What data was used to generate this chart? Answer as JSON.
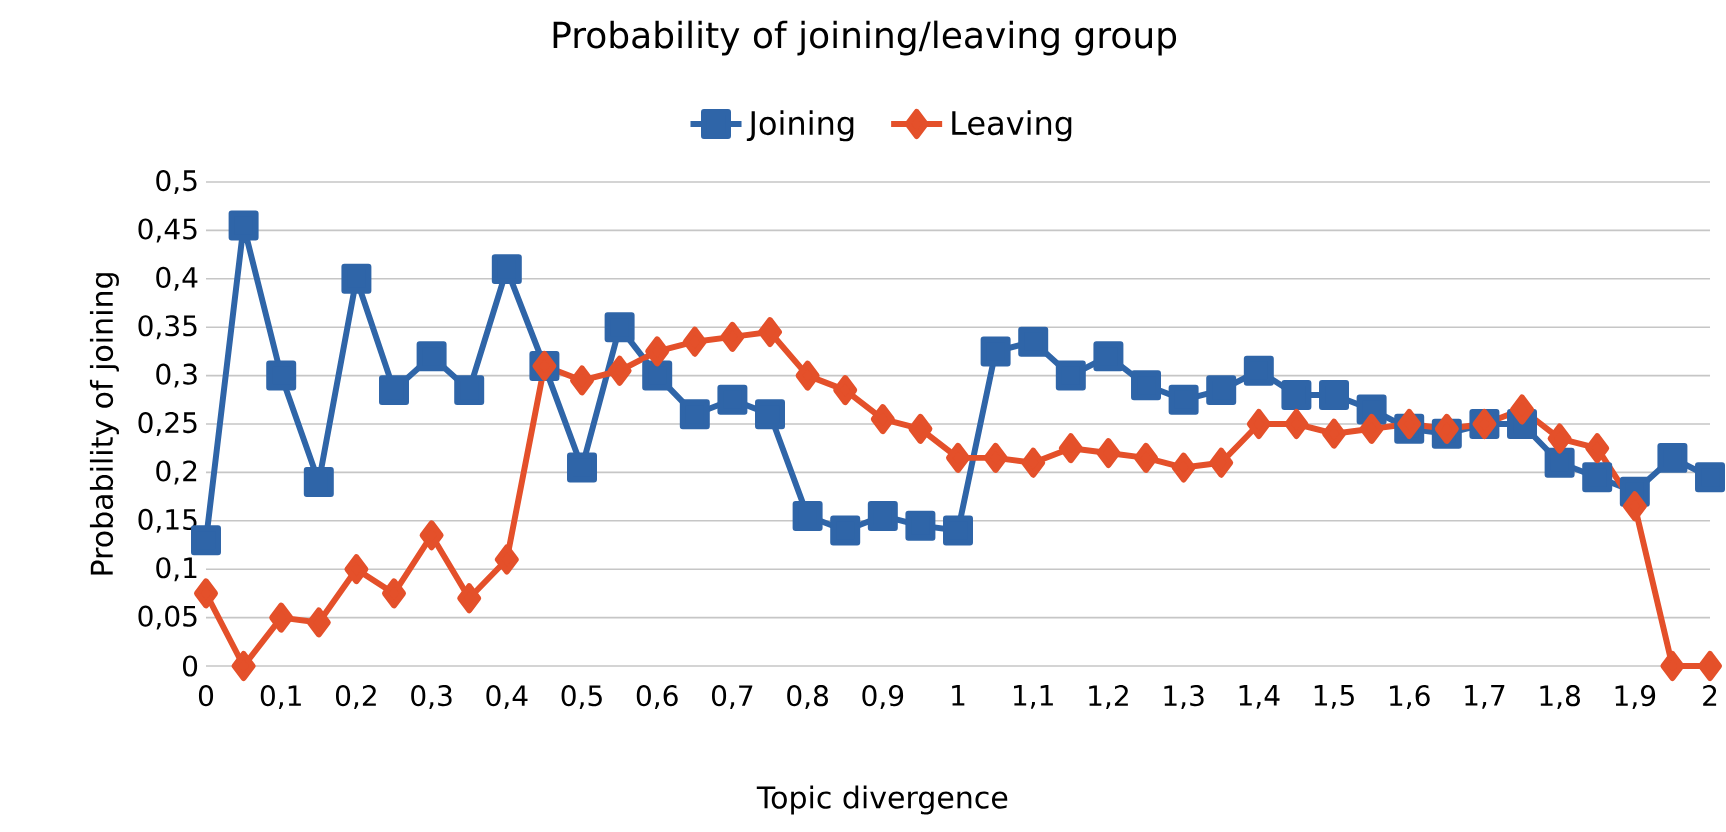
{
  "chart_data": {
    "type": "line",
    "title": "Probability of joining/leaving group",
    "xlabel": "Topic divergence",
    "ylabel": "Probability of joining",
    "x": [
      0,
      0.05,
      0.1,
      0.15,
      0.2,
      0.25,
      0.3,
      0.35,
      0.4,
      0.45,
      0.5,
      0.55,
      0.6,
      0.65,
      0.7,
      0.75,
      0.8,
      0.85,
      0.9,
      0.95,
      1,
      1.05,
      1.1,
      1.15,
      1.2,
      1.25,
      1.3,
      1.35,
      1.4,
      1.45,
      1.5,
      1.55,
      1.6,
      1.65,
      1.7,
      1.75,
      1.8,
      1.85,
      1.9,
      1.95,
      2
    ],
    "series": [
      {
        "name": "Joining",
        "color": "#2f65a8",
        "marker": "square",
        "values": [
          0.13,
          0.455,
          0.3,
          0.19,
          0.4,
          0.285,
          0.32,
          0.285,
          0.41,
          0.31,
          0.205,
          0.35,
          0.3,
          0.26,
          0.275,
          0.26,
          0.155,
          0.14,
          0.155,
          0.145,
          0.14,
          0.325,
          0.335,
          0.3,
          0.32,
          0.29,
          0.275,
          0.285,
          0.305,
          0.28,
          0.28,
          0.265,
          0.245,
          0.24,
          0.25,
          0.25,
          0.21,
          0.195,
          0.18,
          0.215,
          0.195
        ]
      },
      {
        "name": "Leaving",
        "color": "#e4502a",
        "marker": "diamond",
        "values": [
          0.075,
          0,
          0.05,
          0.045,
          0.1,
          0.075,
          0.135,
          0.07,
          0.11,
          0.31,
          0.295,
          0.305,
          0.325,
          0.335,
          0.34,
          0.345,
          0.3,
          0.285,
          0.255,
          0.245,
          0.215,
          0.215,
          0.21,
          0.225,
          0.22,
          0.215,
          0.205,
          0.21,
          0.25,
          0.25,
          0.24,
          0.245,
          0.25,
          0.245,
          0.25,
          0.265,
          0.235,
          0.225,
          0.165,
          0,
          0
        ]
      }
    ],
    "xlim": [
      0,
      2
    ],
    "xticks": [
      {
        "value": 0,
        "label": "0"
      },
      {
        "value": 0.1,
        "label": "0,1"
      },
      {
        "value": 0.2,
        "label": "0,2"
      },
      {
        "value": 0.3,
        "label": "0,3"
      },
      {
        "value": 0.4,
        "label": "0,4"
      },
      {
        "value": 0.5,
        "label": "0,5"
      },
      {
        "value": 0.6,
        "label": "0,6"
      },
      {
        "value": 0.7,
        "label": "0,7"
      },
      {
        "value": 0.8,
        "label": "0,8"
      },
      {
        "value": 0.9,
        "label": "0,9"
      },
      {
        "value": 1,
        "label": "1"
      },
      {
        "value": 1.1,
        "label": "1,1"
      },
      {
        "value": 1.2,
        "label": "1,2"
      },
      {
        "value": 1.3,
        "label": "1,3"
      },
      {
        "value": 1.4,
        "label": "1,4"
      },
      {
        "value": 1.5,
        "label": "1,5"
      },
      {
        "value": 1.6,
        "label": "1,6"
      },
      {
        "value": 1.7,
        "label": "1,7"
      },
      {
        "value": 1.8,
        "label": "1,8"
      },
      {
        "value": 1.9,
        "label": "1,9"
      },
      {
        "value": 2,
        "label": "2"
      }
    ],
    "ylim": [
      0,
      0.5
    ],
    "yticks": [
      {
        "value": 0,
        "label": "0"
      },
      {
        "value": 0.05,
        "label": "0,05"
      },
      {
        "value": 0.1,
        "label": "0,1"
      },
      {
        "value": 0.15,
        "label": "0,15"
      },
      {
        "value": 0.2,
        "label": "0,2"
      },
      {
        "value": 0.25,
        "label": "0,25"
      },
      {
        "value": 0.3,
        "label": "0,3"
      },
      {
        "value": 0.35,
        "label": "0,35"
      },
      {
        "value": 0.4,
        "label": "0,4"
      },
      {
        "value": 0.45,
        "label": "0,45"
      },
      {
        "value": 0.5,
        "label": "0,5"
      }
    ],
    "grid": "y",
    "legend": "top",
    "line_style": "solid"
  }
}
